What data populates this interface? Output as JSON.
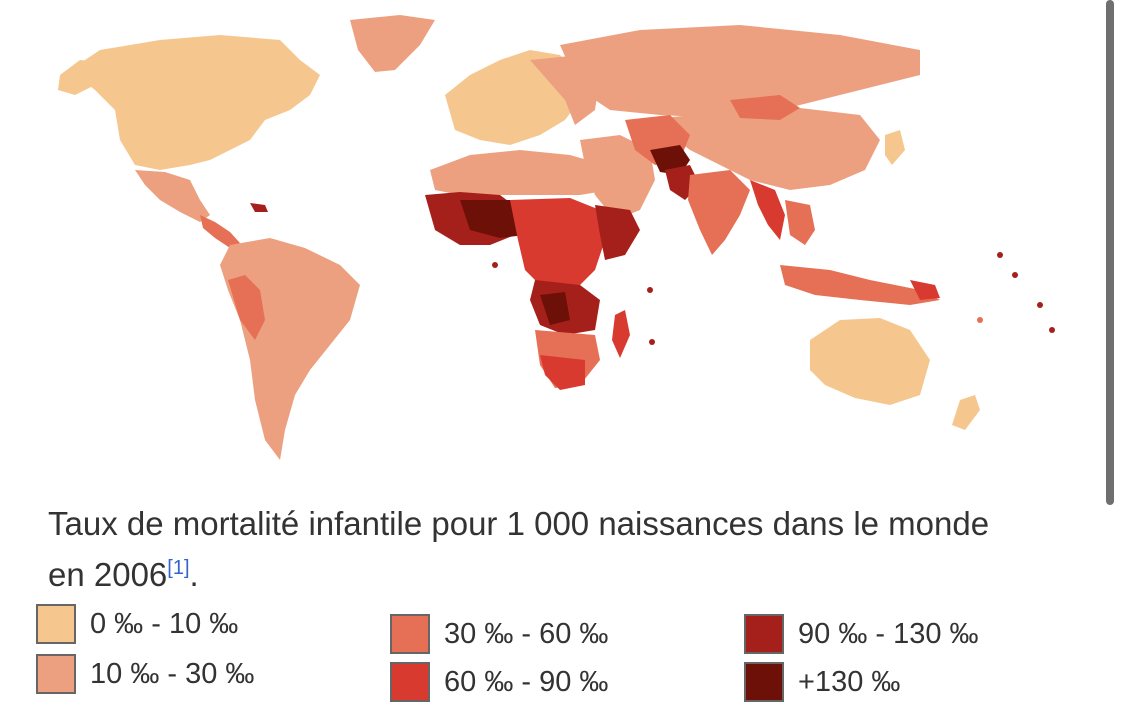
{
  "caption": {
    "text": "Taux de mortalité infantile pour 1 000 naissances dans le monde en 2006",
    "ref": "[1]",
    "end": "."
  },
  "legend": [
    {
      "label": "0 ‰ - 10 ‰",
      "color": "#f5c78e"
    },
    {
      "label": "10 ‰ - 30 ‰",
      "color": "#eda080"
    },
    {
      "label": "30 ‰ - 60 ‰",
      "color": "#e67055"
    },
    {
      "label": "60 ‰ - 90 ‰",
      "color": "#d93a30"
    },
    {
      "label": "90 ‰ - 130 ‰",
      "color": "#a5201a"
    },
    {
      "label": "+130 ‰",
      "color": "#6d1008"
    }
  ]
}
